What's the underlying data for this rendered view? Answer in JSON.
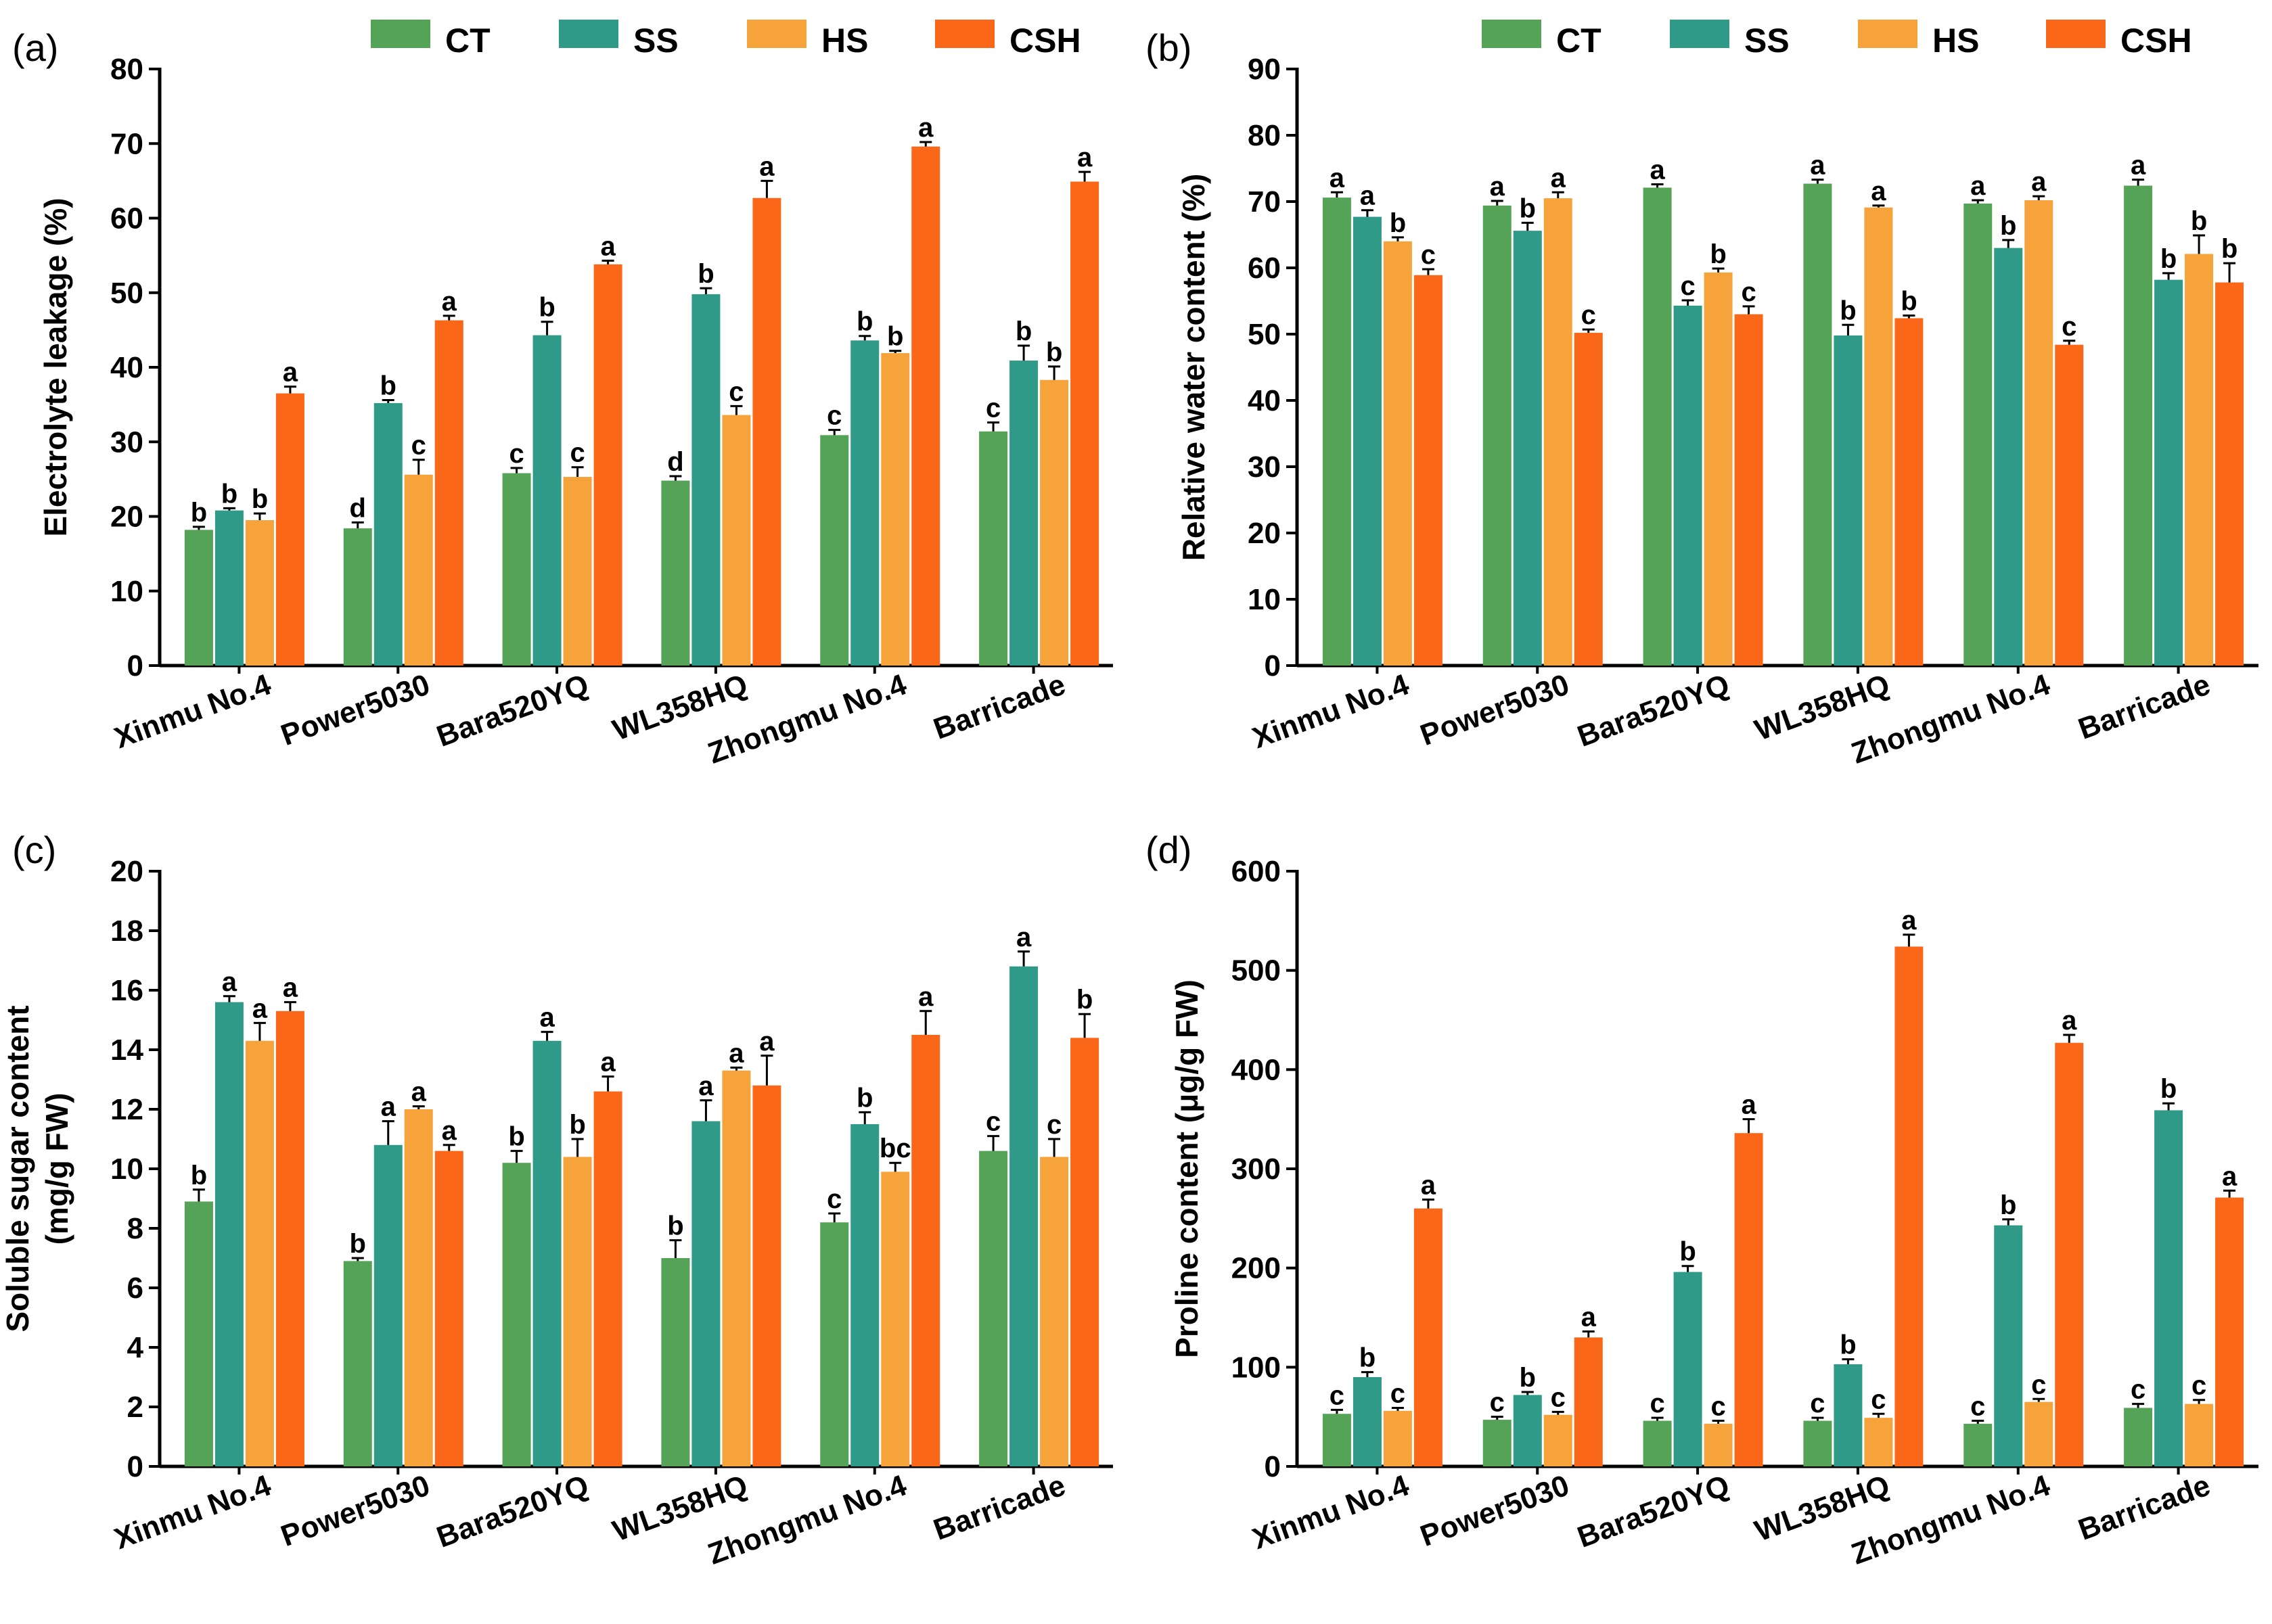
{
  "legend": {
    "items": [
      {
        "name": "CT",
        "color": "#55a357"
      },
      {
        "name": "SS",
        "color": "#2f9a88"
      },
      {
        "name": "HS",
        "color": "#f6a33c"
      },
      {
        "name": "CSH",
        "color": "#fb6719"
      }
    ]
  },
  "chart_data": [
    {
      "panel": "(a)",
      "type": "bar",
      "ylabel": "Electrolyte leakage (%)",
      "ylim": [
        0,
        80
      ],
      "yticks": [
        0,
        10,
        20,
        30,
        40,
        50,
        60,
        70,
        80
      ],
      "categories": [
        "Xinmu No.4",
        "Power5030",
        "Bara520YQ",
        "WL358HQ",
        "Zhongmu No.4",
        "Barricade"
      ],
      "series": [
        {
          "name": "CT",
          "values": [
            18.2,
            18.4,
            25.8,
            24.8,
            30.9,
            31.4
          ],
          "errors": [
            0.4,
            0.8,
            0.7,
            0.6,
            0.7,
            1.2
          ],
          "letters": [
            "b",
            "d",
            "c",
            "d",
            "c",
            "c"
          ]
        },
        {
          "name": "SS",
          "values": [
            20.8,
            35.2,
            44.3,
            49.8,
            43.6,
            40.9
          ],
          "errors": [
            0.3,
            0.4,
            1.8,
            0.8,
            0.6,
            2.0
          ],
          "letters": [
            "b",
            "b",
            "b",
            "b",
            "b",
            "b"
          ]
        },
        {
          "name": "HS",
          "values": [
            19.5,
            25.6,
            25.3,
            33.6,
            41.9,
            38.3
          ],
          "errors": [
            0.9,
            2.0,
            1.3,
            1.2,
            0.3,
            1.8
          ],
          "letters": [
            "b",
            "c",
            "c",
            "c",
            "b",
            "b"
          ]
        },
        {
          "name": "CSH",
          "values": [
            36.5,
            46.3,
            53.8,
            62.7,
            69.6,
            64.9
          ],
          "errors": [
            0.9,
            0.6,
            0.5,
            2.3,
            0.6,
            1.3
          ],
          "letters": [
            "a",
            "a",
            "a",
            "a",
            "a",
            "a"
          ]
        }
      ]
    },
    {
      "panel": "(b)",
      "type": "bar",
      "ylabel": "Relative water content (%)",
      "ylim": [
        0,
        90
      ],
      "yticks": [
        0,
        10,
        20,
        30,
        40,
        50,
        60,
        70,
        80,
        90
      ],
      "categories": [
        "Xinmu No.4",
        "Power5030",
        "Bara520YQ",
        "WL358HQ",
        "Zhongmu No.4",
        "Barricade"
      ],
      "series": [
        {
          "name": "CT",
          "values": [
            70.6,
            69.4,
            72.1,
            72.7,
            69.7,
            72.4
          ],
          "errors": [
            0.8,
            0.7,
            0.5,
            0.6,
            0.5,
            0.9
          ],
          "letters": [
            "a",
            "a",
            "a",
            "a",
            "a",
            "a"
          ]
        },
        {
          "name": "SS",
          "values": [
            67.7,
            65.6,
            54.3,
            49.8,
            63.0,
            58.2
          ],
          "errors": [
            1.0,
            1.2,
            0.8,
            1.6,
            1.2,
            1.0
          ],
          "letters": [
            "a",
            "b",
            "c",
            "b",
            "b",
            "b"
          ]
        },
        {
          "name": "HS",
          "values": [
            64.0,
            70.5,
            59.3,
            69.1,
            70.2,
            62.1
          ],
          "errors": [
            0.6,
            0.9,
            0.6,
            0.3,
            0.6,
            2.8
          ],
          "letters": [
            "b",
            "a",
            "b",
            "a",
            "a",
            "b"
          ]
        },
        {
          "name": "CSH",
          "values": [
            58.9,
            50.2,
            53.0,
            52.4,
            48.4,
            57.8
          ],
          "errors": [
            0.9,
            0.5,
            1.2,
            0.4,
            0.6,
            2.9
          ],
          "letters": [
            "c",
            "c",
            "c",
            "b",
            "c",
            "b"
          ]
        }
      ]
    },
    {
      "panel": "(c)",
      "type": "bar",
      "ylabel": [
        "Soluble sugar content",
        "(mg/g FW)"
      ],
      "ylim": [
        0,
        20
      ],
      "yticks": [
        0,
        2,
        4,
        6,
        8,
        10,
        12,
        14,
        16,
        18,
        20
      ],
      "categories": [
        "Xinmu No.4",
        "Power5030",
        "Bara520YQ",
        "WL358HQ",
        "Zhongmu No.4",
        "Barricade"
      ],
      "series": [
        {
          "name": "CT",
          "values": [
            8.9,
            6.9,
            10.2,
            7.0,
            8.2,
            10.6
          ],
          "errors": [
            0.4,
            0.1,
            0.4,
            0.6,
            0.3,
            0.5
          ],
          "letters": [
            "b",
            "b",
            "b",
            "b",
            "c",
            "c"
          ]
        },
        {
          "name": "SS",
          "values": [
            15.6,
            10.8,
            14.3,
            11.6,
            11.5,
            16.8
          ],
          "errors": [
            0.2,
            0.8,
            0.3,
            0.7,
            0.4,
            0.5
          ],
          "letters": [
            "a",
            "a",
            "a",
            "a",
            "b",
            "a"
          ]
        },
        {
          "name": "HS",
          "values": [
            14.3,
            12.0,
            10.4,
            13.3,
            9.9,
            10.4
          ],
          "errors": [
            0.6,
            0.1,
            0.6,
            0.1,
            0.3,
            0.6
          ],
          "letters": [
            "a",
            "a",
            "b",
            "a",
            "bc",
            "c"
          ]
        },
        {
          "name": "CSH",
          "values": [
            15.3,
            10.6,
            12.6,
            12.8,
            14.5,
            14.4
          ],
          "errors": [
            0.3,
            0.2,
            0.5,
            1.0,
            0.8,
            0.8
          ],
          "letters": [
            "a",
            "a",
            "a",
            "a",
            "a",
            "b"
          ]
        }
      ]
    },
    {
      "panel": "(d)",
      "type": "bar",
      "ylabel": "Proline content (μg/g  FW)",
      "ylim": [
        0,
        600
      ],
      "yticks": [
        0,
        100,
        200,
        300,
        400,
        500,
        600
      ],
      "categories": [
        "Xinmu No.4",
        "Power5030",
        "Bara520YQ",
        "WL358HQ",
        "Zhongmu No.4",
        "Barricade"
      ],
      "series": [
        {
          "name": "CT",
          "values": [
            53,
            47,
            46,
            46,
            43,
            59
          ],
          "errors": [
            4,
            3,
            3,
            3,
            3,
            4
          ],
          "letters": [
            "c",
            "c",
            "c",
            "c",
            "c",
            "c"
          ]
        },
        {
          "name": "SS",
          "values": [
            90,
            72,
            196,
            103,
            243,
            359
          ],
          "errors": [
            5,
            3,
            6,
            5,
            6,
            7
          ],
          "letters": [
            "b",
            "b",
            "b",
            "b",
            "b",
            "b"
          ]
        },
        {
          "name": "HS",
          "values": [
            56,
            52,
            43,
            49,
            65,
            63
          ],
          "errors": [
            3,
            3,
            3,
            4,
            3,
            4
          ],
          "letters": [
            "c",
            "c",
            "c",
            "c",
            "c",
            "c"
          ]
        },
        {
          "name": "CSH",
          "values": [
            260,
            130,
            336,
            524,
            427,
            271
          ],
          "errors": [
            9,
            6,
            14,
            12,
            8,
            7
          ],
          "letters": [
            "a",
            "a",
            "a",
            "a",
            "a",
            "a"
          ]
        }
      ]
    }
  ]
}
